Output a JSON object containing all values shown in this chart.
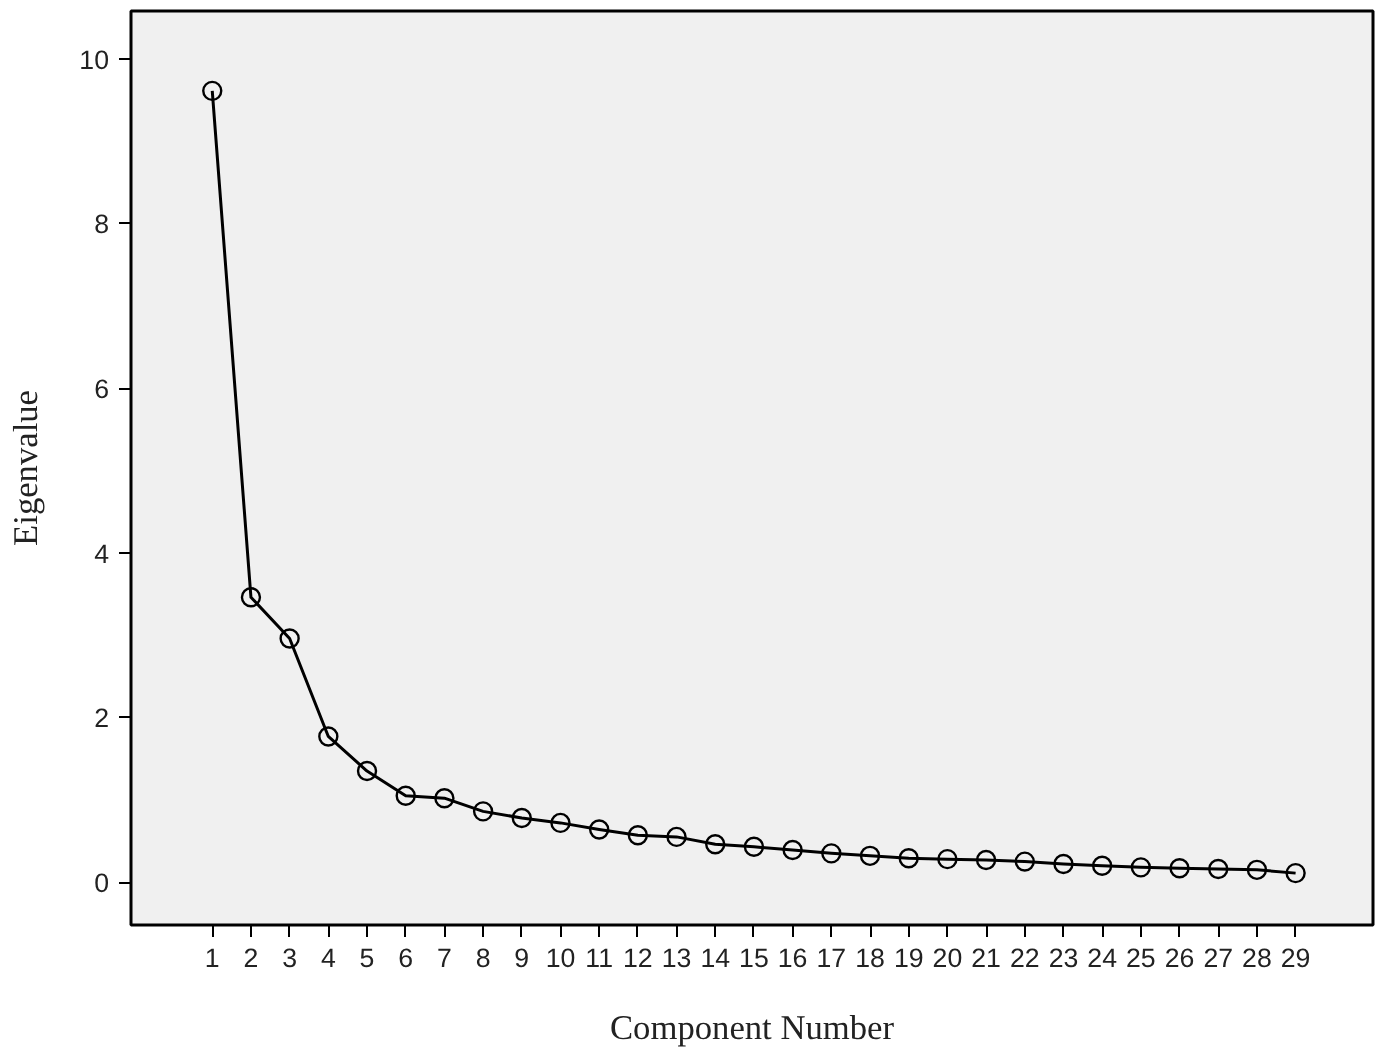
{
  "chart_data": {
    "type": "line",
    "xlabel": "Component Number",
    "ylabel": "Eigenvalue",
    "x": [
      1,
      2,
      3,
      4,
      5,
      6,
      7,
      8,
      9,
      10,
      11,
      12,
      13,
      14,
      15,
      16,
      17,
      18,
      19,
      20,
      21,
      22,
      23,
      24,
      25,
      26,
      27,
      28,
      29
    ],
    "series": [
      {
        "color": "#000000",
        "values": [
          9.61,
          3.46,
          2.96,
          1.77,
          1.35,
          1.05,
          1.02,
          0.86,
          0.78,
          0.72,
          0.64,
          0.57,
          0.55,
          0.46,
          0.43,
          0.39,
          0.35,
          0.32,
          0.29,
          0.28,
          0.27,
          0.25,
          0.22,
          0.2,
          0.18,
          0.17,
          0.16,
          0.15,
          0.11
        ]
      }
    ],
    "xlim": [
      -1.1,
      31
    ],
    "ylim": [
      -0.52,
      10.58
    ],
    "xticks": [
      1,
      2,
      3,
      4,
      5,
      6,
      7,
      8,
      9,
      10,
      11,
      12,
      13,
      14,
      15,
      16,
      17,
      18,
      19,
      20,
      21,
      22,
      23,
      24,
      25,
      26,
      27,
      28,
      29
    ],
    "yticks": [
      0,
      2,
      4,
      6,
      8,
      10
    ],
    "grid": false,
    "marker": "circle",
    "line_style": "solid"
  }
}
